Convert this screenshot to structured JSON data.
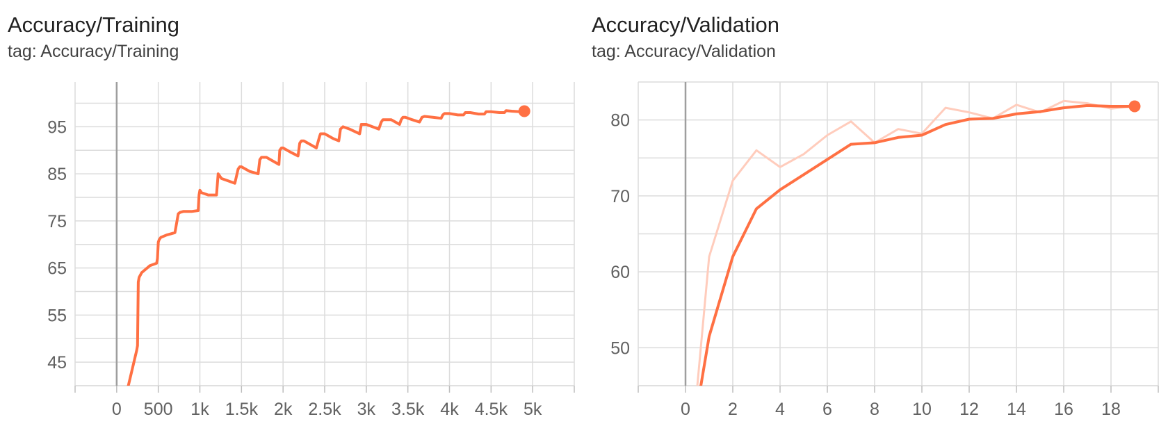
{
  "colors": {
    "line": "#ff7043",
    "line_raw": "#ffccbc",
    "grid": "#dcdcdc",
    "zero_axis": "#9e9e9e"
  },
  "charts": [
    {
      "title": "Accuracy/Training",
      "tag": "tag: Accuracy/Training"
    },
    {
      "title": "Accuracy/Validation",
      "tag": "tag: Accuracy/Validation"
    }
  ],
  "chart_data": [
    {
      "type": "line",
      "title": "Accuracy/Training",
      "subtitle": "tag: Accuracy/Training",
      "xlim": [
        -500,
        5500
      ],
      "ylim": [
        40,
        104.5
      ],
      "xticks": [
        0,
        500,
        1000,
        1500,
        2000,
        2500,
        3000,
        3500,
        4000,
        4500,
        5000
      ],
      "xtick_labels": [
        "0",
        "500",
        "1k",
        "1.5k",
        "2k",
        "2.5k",
        "3k",
        "3.5k",
        "4k",
        "4.5k",
        "5k"
      ],
      "yticks": [
        45,
        55,
        65,
        75,
        85,
        95
      ],
      "grid": true,
      "legend": "none",
      "series": [
        {
          "role": "smoothed",
          "marker_on_last": true,
          "x": [
            140,
            240,
            250,
            260,
            270,
            300,
            400,
            480,
            490,
            500,
            510,
            530,
            600,
            700,
            730,
            740,
            760,
            800,
            900,
            980,
            990,
            1000,
            1020,
            1100,
            1200,
            1220,
            1240,
            1260,
            1340,
            1420,
            1460,
            1480,
            1500,
            1600,
            1700,
            1720,
            1740,
            1800,
            1900,
            1950,
            1960,
            1980,
            2000,
            2100,
            2180,
            2200,
            2220,
            2250,
            2300,
            2400,
            2440,
            2450,
            2470,
            2500,
            2600,
            2670,
            2690,
            2720,
            2800,
            2920,
            2940,
            2960,
            3000,
            3150,
            3180,
            3200,
            3230,
            3300,
            3400,
            3420,
            3440,
            3470,
            3550,
            3640,
            3670,
            3700,
            3800,
            3900,
            3920,
            3940,
            4000,
            4100,
            4170,
            4190,
            4250,
            4350,
            4420,
            4440,
            4500,
            4600,
            4660,
            4680,
            4750,
            4850,
            4900
          ],
          "y": [
            40,
            47.5,
            48.5,
            62,
            63,
            64,
            65.5,
            66,
            67,
            70.5,
            71,
            71.5,
            72,
            72.5,
            75.5,
            76.5,
            76.8,
            77,
            77,
            77.2,
            80.5,
            81.5,
            81,
            80.5,
            80.5,
            85,
            84.5,
            84,
            83.5,
            83,
            86,
            86.5,
            86.5,
            85.5,
            85,
            88,
            88.5,
            88.5,
            87.5,
            87,
            90,
            90.5,
            90.5,
            89.5,
            88.8,
            91.5,
            92,
            92,
            91.5,
            90.5,
            93,
            93.5,
            93.5,
            93.5,
            92.5,
            92,
            94.5,
            95,
            94.5,
            93.5,
            95.5,
            95.5,
            95.5,
            94.5,
            96,
            96.5,
            96.5,
            96.5,
            95.5,
            96.5,
            97,
            97,
            96.5,
            96,
            97,
            97.2,
            97,
            96.8,
            97.5,
            97.8,
            97.8,
            97.5,
            97.5,
            98,
            98,
            97.7,
            97.7,
            98.2,
            98.2,
            98,
            98,
            98.4,
            98.3,
            98.2,
            98.3
          ]
        }
      ]
    },
    {
      "type": "line",
      "title": "Accuracy/Validation",
      "subtitle": "tag: Accuracy/Validation",
      "xlim": [
        -2,
        20
      ],
      "ylim": [
        45,
        85
      ],
      "xticks": [
        0,
        2,
        4,
        6,
        8,
        10,
        12,
        14,
        16,
        18
      ],
      "xtick_labels": [
        "0",
        "2",
        "4",
        "6",
        "8",
        "10",
        "12",
        "14",
        "16",
        "18"
      ],
      "yticks": [
        50,
        60,
        70,
        80
      ],
      "grid": true,
      "legend": "none",
      "series": [
        {
          "role": "raw",
          "x": [
            0.5,
            1,
            2,
            3,
            4,
            5,
            6,
            7,
            8,
            9,
            10,
            11,
            12,
            13,
            14,
            15,
            16,
            17,
            18,
            19
          ],
          "y": [
            45,
            62,
            72,
            76,
            73.8,
            75.5,
            78,
            79.8,
            77,
            78.8,
            78.2,
            81.6,
            81,
            80.2,
            82,
            81,
            82.5,
            82.2,
            81.5,
            81.8
          ]
        },
        {
          "role": "smoothed",
          "marker_on_last": true,
          "x": [
            0.65,
            1,
            2,
            3,
            4,
            5,
            6,
            7,
            8,
            9,
            10,
            11,
            12,
            13,
            14,
            15,
            16,
            17,
            18,
            19
          ],
          "y": [
            45,
            51.5,
            62,
            68.3,
            70.8,
            72.8,
            74.8,
            76.8,
            77,
            77.7,
            78,
            79.4,
            80.1,
            80.2,
            80.8,
            81.1,
            81.6,
            81.9,
            81.8,
            81.8
          ]
        }
      ]
    }
  ]
}
